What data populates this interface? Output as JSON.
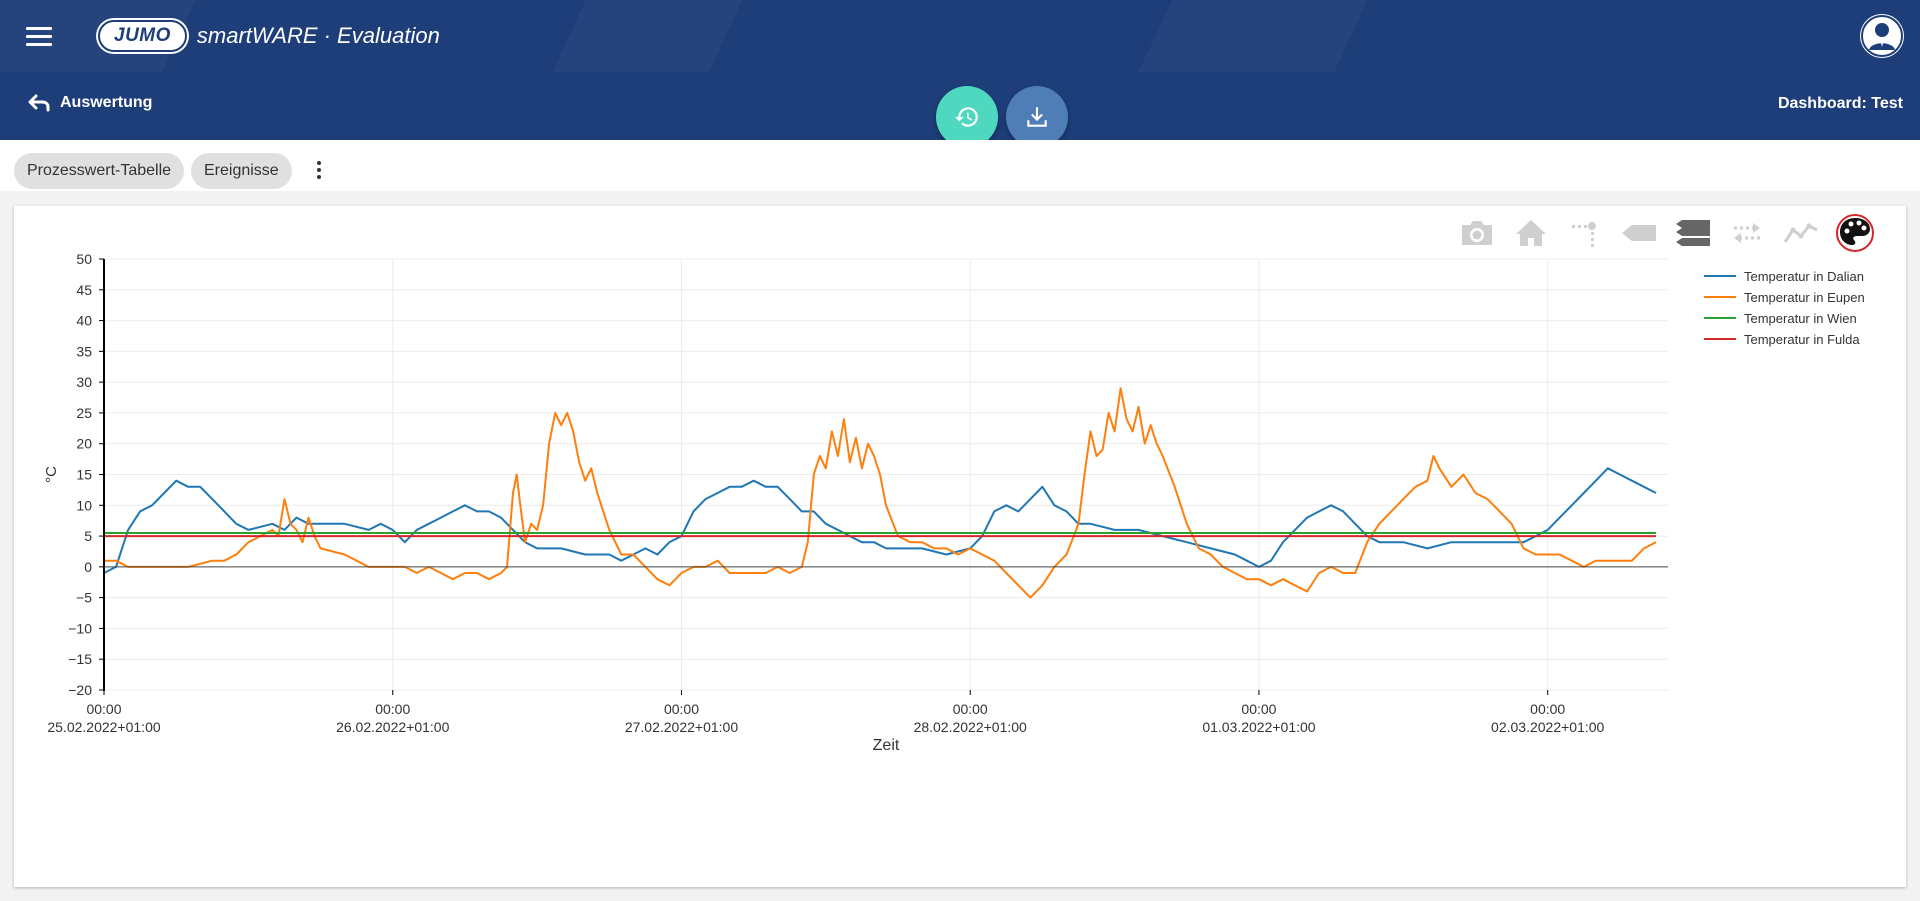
{
  "header": {
    "logo_badge": "JUMO",
    "app_title": "smartWARE · Evaluation"
  },
  "subheader": {
    "back_label": "Auswertung",
    "dashboard_title": "Dashboard: Test"
  },
  "tabs": [
    {
      "label": "Prozesswert-Tabelle"
    },
    {
      "label": "Ereignisse"
    }
  ],
  "colors": {
    "brand": "#1e3e7a",
    "fab_history": "#4dd8bf",
    "fab_download": "#4e7eb5"
  },
  "chart_data": {
    "type": "line",
    "title": "",
    "xlabel": "Zeit",
    "ylabel": "°C",
    "ylim": [
      -20,
      50
    ],
    "yticks": [
      -20,
      -15,
      -10,
      -5,
      0,
      5,
      10,
      15,
      20,
      25,
      30,
      35,
      40,
      45,
      50
    ],
    "xlim": [
      0,
      130
    ],
    "x_unit": "hours since 25.02.2022 00:00",
    "xticks": [
      {
        "x": 0,
        "time": "00:00",
        "date": "25.02.2022+01:00"
      },
      {
        "x": 24,
        "time": "00:00",
        "date": "26.02.2022+01:00"
      },
      {
        "x": 48,
        "time": "00:00",
        "date": "27.02.2022+01:00"
      },
      {
        "x": 72,
        "time": "00:00",
        "date": "28.02.2022+01:00"
      },
      {
        "x": 96,
        "time": "00:00",
        "date": "01.03.2022+01:00"
      },
      {
        "x": 120,
        "time": "00:00",
        "date": "02.03.2022+01:00"
      }
    ],
    "legend_position": "top-right",
    "series": [
      {
        "name": "Temperatur in Dalian",
        "color": "#1f77b4",
        "points": [
          [
            0,
            -1
          ],
          [
            1,
            0
          ],
          [
            2,
            6
          ],
          [
            3,
            9
          ],
          [
            4,
            10
          ],
          [
            5,
            12
          ],
          [
            6,
            14
          ],
          [
            7,
            13
          ],
          [
            8,
            13
          ],
          [
            9,
            11
          ],
          [
            10,
            9
          ],
          [
            11,
            7
          ],
          [
            12,
            6
          ],
          [
            14,
            7
          ],
          [
            15,
            6
          ],
          [
            16,
            8
          ],
          [
            17,
            7
          ],
          [
            18,
            7
          ],
          [
            20,
            7
          ],
          [
            22,
            6
          ],
          [
            23,
            7
          ],
          [
            24,
            6
          ],
          [
            25,
            4
          ],
          [
            26,
            6
          ],
          [
            27,
            7
          ],
          [
            28,
            8
          ],
          [
            29,
            9
          ],
          [
            30,
            10
          ],
          [
            31,
            9
          ],
          [
            32,
            9
          ],
          [
            33,
            8
          ],
          [
            34,
            6
          ],
          [
            35,
            4
          ],
          [
            36,
            3
          ],
          [
            38,
            3
          ],
          [
            40,
            2
          ],
          [
            41,
            2
          ],
          [
            42,
            2
          ],
          [
            43,
            1
          ],
          [
            44,
            2
          ],
          [
            45,
            3
          ],
          [
            46,
            2
          ],
          [
            47,
            4
          ],
          [
            48,
            5
          ],
          [
            49,
            9
          ],
          [
            50,
            11
          ],
          [
            51,
            12
          ],
          [
            52,
            13
          ],
          [
            53,
            13
          ],
          [
            54,
            14
          ],
          [
            55,
            13
          ],
          [
            56,
            13
          ],
          [
            57,
            11
          ],
          [
            58,
            9
          ],
          [
            59,
            9
          ],
          [
            60,
            7
          ],
          [
            61,
            6
          ],
          [
            62,
            5
          ],
          [
            63,
            4
          ],
          [
            64,
            4
          ],
          [
            65,
            3
          ],
          [
            66,
            3
          ],
          [
            68,
            3
          ],
          [
            70,
            2
          ],
          [
            72,
            3
          ],
          [
            73,
            5
          ],
          [
            74,
            9
          ],
          [
            75,
            10
          ],
          [
            76,
            9
          ],
          [
            77,
            11
          ],
          [
            78,
            13
          ],
          [
            79,
            10
          ],
          [
            80,
            9
          ],
          [
            81,
            7
          ],
          [
            82,
            7
          ],
          [
            84,
            6
          ],
          [
            86,
            6
          ],
          [
            88,
            5
          ],
          [
            90,
            4
          ],
          [
            92,
            3
          ],
          [
            94,
            2
          ],
          [
            95,
            1
          ],
          [
            96,
            0
          ],
          [
            97,
            1
          ],
          [
            98,
            4
          ],
          [
            99,
            6
          ],
          [
            100,
            8
          ],
          [
            101,
            9
          ],
          [
            102,
            10
          ],
          [
            103,
            9
          ],
          [
            104,
            7
          ],
          [
            105,
            5
          ],
          [
            106,
            4
          ],
          [
            108,
            4
          ],
          [
            110,
            3
          ],
          [
            112,
            4
          ],
          [
            114,
            4
          ],
          [
            116,
            4
          ],
          [
            118,
            4
          ],
          [
            119,
            5
          ],
          [
            120,
            6
          ],
          [
            121,
            8
          ],
          [
            122,
            10
          ],
          [
            123,
            12
          ],
          [
            124,
            14
          ],
          [
            125,
            16
          ],
          [
            126,
            15
          ],
          [
            127,
            14
          ],
          [
            128,
            13
          ],
          [
            129,
            12
          ]
        ]
      },
      {
        "name": "Temperatur in Eupen",
        "color": "#ff7f0e",
        "points": [
          [
            0,
            1
          ],
          [
            1,
            1
          ],
          [
            2,
            0
          ],
          [
            3,
            0
          ],
          [
            5,
            0
          ],
          [
            7,
            0
          ],
          [
            9,
            1
          ],
          [
            10,
            1
          ],
          [
            11,
            2
          ],
          [
            12,
            4
          ],
          [
            13,
            5
          ],
          [
            14,
            6
          ],
          [
            14.5,
            5
          ],
          [
            15,
            11
          ],
          [
            15.5,
            7
          ],
          [
            16,
            6
          ],
          [
            16.5,
            4
          ],
          [
            17,
            8
          ],
          [
            17.5,
            5
          ],
          [
            18,
            3
          ],
          [
            20,
            2
          ],
          [
            21,
            1
          ],
          [
            22,
            0
          ],
          [
            23,
            0
          ],
          [
            24,
            0
          ],
          [
            25,
            0
          ],
          [
            26,
            -1
          ],
          [
            27,
            0
          ],
          [
            28,
            -1
          ],
          [
            29,
            -2
          ],
          [
            30,
            -1
          ],
          [
            31,
            -1
          ],
          [
            32,
            -2
          ],
          [
            33,
            -1
          ],
          [
            33.5,
            0
          ],
          [
            34,
            12
          ],
          [
            34.3,
            15
          ],
          [
            34.6,
            10
          ],
          [
            35,
            4
          ],
          [
            35.5,
            7
          ],
          [
            36,
            6
          ],
          [
            36.5,
            10
          ],
          [
            37,
            20
          ],
          [
            37.5,
            25
          ],
          [
            38,
            23
          ],
          [
            38.5,
            25
          ],
          [
            39,
            22
          ],
          [
            39.5,
            17
          ],
          [
            40,
            14
          ],
          [
            40.5,
            16
          ],
          [
            41,
            12
          ],
          [
            42,
            6
          ],
          [
            43,
            2
          ],
          [
            44,
            2
          ],
          [
            45,
            0
          ],
          [
            46,
            -2
          ],
          [
            47,
            -3
          ],
          [
            48,
            -1
          ],
          [
            49,
            0
          ],
          [
            50,
            0
          ],
          [
            51,
            1
          ],
          [
            52,
            -1
          ],
          [
            53,
            -1
          ],
          [
            54,
            -1
          ],
          [
            55,
            -1
          ],
          [
            56,
            0
          ],
          [
            57,
            -1
          ],
          [
            58,
            0
          ],
          [
            58.5,
            4
          ],
          [
            59,
            15
          ],
          [
            59.5,
            18
          ],
          [
            60,
            16
          ],
          [
            60.5,
            22
          ],
          [
            61,
            18
          ],
          [
            61.5,
            24
          ],
          [
            62,
            17
          ],
          [
            62.5,
            21
          ],
          [
            63,
            16
          ],
          [
            63.5,
            20
          ],
          [
            64,
            18
          ],
          [
            64.5,
            15
          ],
          [
            65,
            10
          ],
          [
            66,
            5
          ],
          [
            67,
            4
          ],
          [
            68,
            4
          ],
          [
            69,
            3
          ],
          [
            70,
            3
          ],
          [
            71,
            2
          ],
          [
            72,
            3
          ],
          [
            73,
            2
          ],
          [
            74,
            1
          ],
          [
            75,
            -1
          ],
          [
            76,
            -3
          ],
          [
            77,
            -5
          ],
          [
            78,
            -3
          ],
          [
            79,
            0
          ],
          [
            80,
            2
          ],
          [
            81,
            7
          ],
          [
            81.5,
            15
          ],
          [
            82,
            22
          ],
          [
            82.5,
            18
          ],
          [
            83,
            19
          ],
          [
            83.5,
            25
          ],
          [
            84,
            22
          ],
          [
            84.5,
            29
          ],
          [
            85,
            24
          ],
          [
            85.5,
            22
          ],
          [
            86,
            26
          ],
          [
            86.5,
            20
          ],
          [
            87,
            23
          ],
          [
            87.5,
            20
          ],
          [
            88,
            18
          ],
          [
            89,
            13
          ],
          [
            90,
            7
          ],
          [
            91,
            3
          ],
          [
            92,
            2
          ],
          [
            93,
            0
          ],
          [
            94,
            -1
          ],
          [
            95,
            -2
          ],
          [
            96,
            -2
          ],
          [
            97,
            -3
          ],
          [
            98,
            -2
          ],
          [
            99,
            -3
          ],
          [
            100,
            -4
          ],
          [
            101,
            -1
          ],
          [
            102,
            0
          ],
          [
            103,
            -1
          ],
          [
            104,
            -1
          ],
          [
            105,
            4
          ],
          [
            106,
            7
          ],
          [
            107,
            9
          ],
          [
            108,
            11
          ],
          [
            109,
            13
          ],
          [
            110,
            14
          ],
          [
            110.5,
            18
          ],
          [
            111,
            16
          ],
          [
            112,
            13
          ],
          [
            113,
            15
          ],
          [
            114,
            12
          ],
          [
            115,
            11
          ],
          [
            116,
            9
          ],
          [
            117,
            7
          ],
          [
            118,
            3
          ],
          [
            119,
            2
          ],
          [
            120,
            2
          ],
          [
            121,
            2
          ],
          [
            122,
            1
          ],
          [
            123,
            0
          ],
          [
            124,
            1
          ],
          [
            125,
            1
          ],
          [
            126,
            1
          ],
          [
            127,
            1
          ],
          [
            128,
            3
          ],
          [
            129,
            4
          ]
        ]
      },
      {
        "name": "Temperatur in Wien",
        "color": "#2ca02c",
        "points": [
          [
            0,
            5.5
          ],
          [
            129,
            5.5
          ]
        ]
      },
      {
        "name": "Temperatur in Fulda",
        "color": "#d62728",
        "points": [
          [
            0,
            5
          ],
          [
            129,
            5
          ]
        ]
      }
    ]
  }
}
